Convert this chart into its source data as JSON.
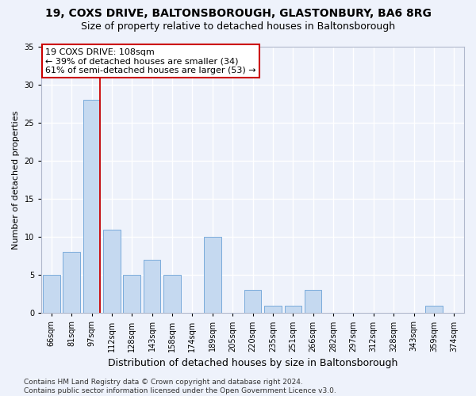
{
  "title1": "19, COXS DRIVE, BALTONSBOROUGH, GLASTONBURY, BA6 8RG",
  "title2": "Size of property relative to detached houses in Baltonsborough",
  "xlabel": "Distribution of detached houses by size in Baltonsborough",
  "ylabel": "Number of detached properties",
  "categories": [
    "66sqm",
    "81sqm",
    "97sqm",
    "112sqm",
    "128sqm",
    "143sqm",
    "158sqm",
    "174sqm",
    "189sqm",
    "205sqm",
    "220sqm",
    "235sqm",
    "251sqm",
    "266sqm",
    "282sqm",
    "297sqm",
    "312sqm",
    "328sqm",
    "343sqm",
    "359sqm",
    "374sqm"
  ],
  "values": [
    5,
    8,
    28,
    11,
    5,
    7,
    5,
    0,
    10,
    0,
    3,
    1,
    1,
    3,
    0,
    0,
    0,
    0,
    0,
    1,
    0
  ],
  "bar_color": "#c5d9f0",
  "bar_edge_color": "#7aabdb",
  "vline_index": 2,
  "vline_color": "#cc0000",
  "annotation_line1": "19 COXS DRIVE: 108sqm",
  "annotation_line2": "← 39% of detached houses are smaller (34)",
  "annotation_line3": "61% of semi-detached houses are larger (53) →",
  "annotation_box_color": "#ffffff",
  "annotation_box_edge": "#cc0000",
  "ylim": [
    0,
    35
  ],
  "yticks": [
    0,
    5,
    10,
    15,
    20,
    25,
    30,
    35
  ],
  "footer": "Contains HM Land Registry data © Crown copyright and database right 2024.\nContains public sector information licensed under the Open Government Licence v3.0.",
  "background_color": "#eef2fb",
  "grid_color": "#ffffff",
  "title1_fontsize": 10,
  "title2_fontsize": 9,
  "xlabel_fontsize": 9,
  "ylabel_fontsize": 8,
  "tick_fontsize": 7,
  "annotation_fontsize": 8,
  "footer_fontsize": 6.5
}
